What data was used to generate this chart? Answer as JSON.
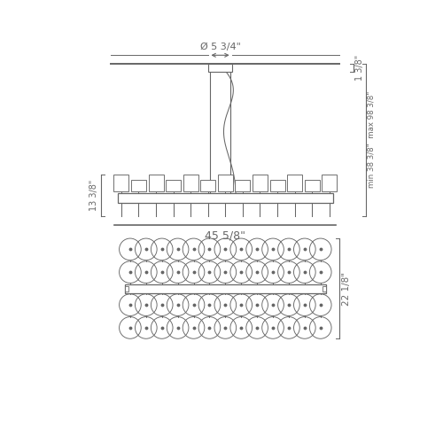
{
  "bg_color": "#ffffff",
  "line_color": "#666666",
  "line_width": 1.0,
  "dim_canopy": "Ø 5 3/4\"",
  "dim_width": "45 5/8\"",
  "dim_height_top": "1 3/8\"",
  "dim_fixture_height": "13 3/8\"",
  "dim_min_max": "min 38 3/8\"  max 98 3/8\"",
  "dim_bottom": "22 1/8\""
}
